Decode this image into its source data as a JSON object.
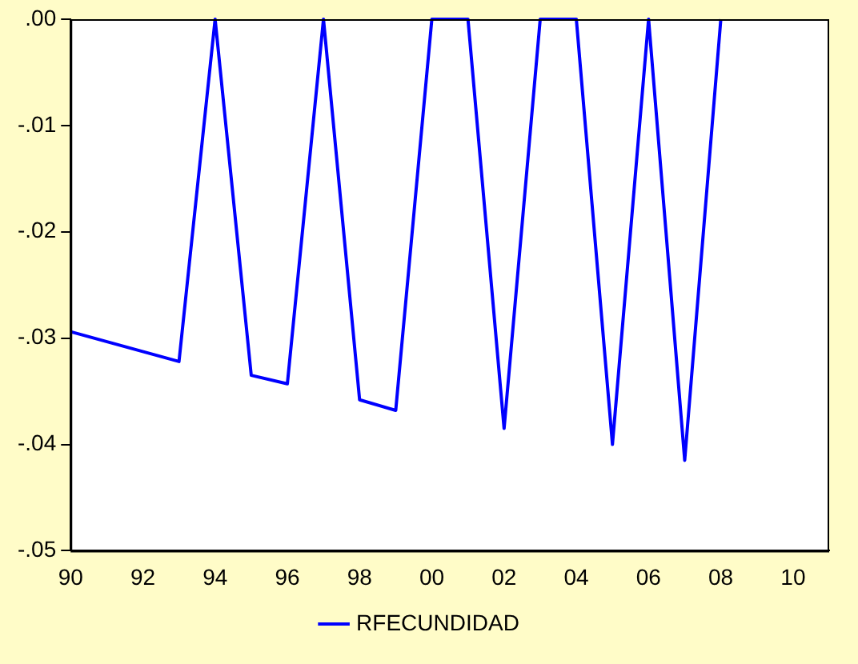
{
  "chart_data": {
    "type": "line",
    "x": [
      1990,
      1993,
      1994,
      1995,
      1996,
      1997,
      1998,
      1999,
      2000,
      2001,
      2002,
      2003,
      2004,
      2005,
      2006,
      2007,
      2008
    ],
    "series": [
      {
        "name": "RFECUNDIDAD",
        "color": "#0000ff",
        "values": [
          -0.0294,
          -0.0322,
          0,
          -0.0335,
          -0.0343,
          0,
          -0.0358,
          -0.0368,
          0,
          0,
          -0.0385,
          0,
          0,
          -0.04,
          0,
          -0.0415,
          0
        ]
      }
    ],
    "xlim": [
      1990,
      2011
    ],
    "xticks": [
      {
        "value": 1990,
        "label": "90"
      },
      {
        "value": 1992,
        "label": "92"
      },
      {
        "value": 1994,
        "label": "94"
      },
      {
        "value": 1996,
        "label": "96"
      },
      {
        "value": 1998,
        "label": "98"
      },
      {
        "value": 2000,
        "label": "00"
      },
      {
        "value": 2002,
        "label": "02"
      },
      {
        "value": 2004,
        "label": "04"
      },
      {
        "value": 2006,
        "label": "06"
      },
      {
        "value": 2008,
        "label": "08"
      },
      {
        "value": 2010,
        "label": "10"
      }
    ],
    "ylim": [
      -0.05,
      0
    ],
    "yticks": [
      {
        "value": -0.05,
        "label": "-.05"
      },
      {
        "value": -0.04,
        "label": "-.04"
      },
      {
        "value": -0.03,
        "label": "-.03"
      },
      {
        "value": -0.02,
        "label": "-.02"
      },
      {
        "value": -0.01,
        "label": "-.01"
      },
      {
        "value": 0,
        "label": ".00"
      }
    ],
    "grid": false,
    "legend": "bottom",
    "marker": "none",
    "line_style": "solid"
  }
}
